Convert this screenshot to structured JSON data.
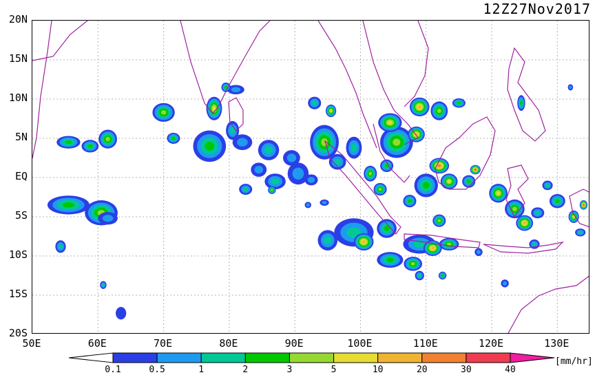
{
  "timestamp": "12Z27Nov2017",
  "map": {
    "projection": "equirectangular",
    "lon_range": [
      50,
      135
    ],
    "lat_range": [
      -20,
      20
    ],
    "grid_lines": "dotted gray every 10° lon / 5° lat",
    "lat_labels": [
      "20N",
      "15N",
      "10N",
      "5N",
      "EQ",
      "5S",
      "10S",
      "15S",
      "20S"
    ],
    "lon_labels": [
      "50E",
      "60E",
      "70E",
      "80E",
      "90E",
      "100E",
      "110E",
      "120E",
      "130E"
    ],
    "coastline_color": "#a020a0"
  },
  "legend": {
    "unit": "[mm/hr]",
    "thresholds": [
      "0.1",
      "0.5",
      "1",
      "2",
      "3",
      "5",
      "10",
      "20",
      "30",
      "40"
    ],
    "colors": [
      "#2b3fe6",
      "#1e9bf0",
      "#00c896",
      "#00c800",
      "#96d832",
      "#e6dc32",
      "#f0b432",
      "#f08232",
      "#f03c50",
      "#f01ea0"
    ]
  },
  "precip_cells": [
    {
      "lon": 55.5,
      "lat": -3.5,
      "rx": 3.2,
      "ry": 1.2,
      "level": 3
    },
    {
      "lon": 60.5,
      "lat": -4.5,
      "rx": 2.5,
      "ry": 1.6,
      "level": 4
    },
    {
      "lon": 61.5,
      "lat": -5.2,
      "rx": 1.5,
      "ry": 0.8,
      "level": 1
    },
    {
      "lon": 55.5,
      "lat": 4.5,
      "rx": 1.8,
      "ry": 0.8,
      "level": 3
    },
    {
      "lon": 58.8,
      "lat": 4.0,
      "rx": 1.3,
      "ry": 0.8,
      "level": 3
    },
    {
      "lon": 61.5,
      "lat": 4.9,
      "rx": 1.4,
      "ry": 1.2,
      "level": 4
    },
    {
      "lon": 54.3,
      "lat": -8.8,
      "rx": 0.8,
      "ry": 0.8,
      "level": 2
    },
    {
      "lon": 63.5,
      "lat": -17.3,
      "rx": 0.8,
      "ry": 0.8,
      "level": 0
    },
    {
      "lon": 60.8,
      "lat": -13.7,
      "rx": 0.5,
      "ry": 0.5,
      "level": 2
    },
    {
      "lon": 70.0,
      "lat": 8.3,
      "rx": 1.7,
      "ry": 1.2,
      "level": 4
    },
    {
      "lon": 71.5,
      "lat": 5.0,
      "rx": 1.0,
      "ry": 0.7,
      "level": 3
    },
    {
      "lon": 77.0,
      "lat": 4.0,
      "rx": 2.5,
      "ry": 2.0,
      "level": 3
    },
    {
      "lon": 77.7,
      "lat": 8.8,
      "rx": 1.2,
      "ry": 1.5,
      "level": 5
    },
    {
      "lon": 80.5,
      "lat": 6.0,
      "rx": 1.0,
      "ry": 1.2,
      "level": 2
    },
    {
      "lon": 82.0,
      "lat": 4.5,
      "rx": 1.5,
      "ry": 1.0,
      "level": 1
    },
    {
      "lon": 86.0,
      "lat": 3.5,
      "rx": 1.6,
      "ry": 1.3,
      "level": 2
    },
    {
      "lon": 89.5,
      "lat": 2.5,
      "rx": 1.3,
      "ry": 1.0,
      "level": 1
    },
    {
      "lon": 84.5,
      "lat": 1.0,
      "rx": 1.2,
      "ry": 0.9,
      "level": 1
    },
    {
      "lon": 87.0,
      "lat": -0.5,
      "rx": 1.6,
      "ry": 1.0,
      "level": 2
    },
    {
      "lon": 90.5,
      "lat": 0.5,
      "rx": 1.6,
      "ry": 1.4,
      "level": 1
    },
    {
      "lon": 92.5,
      "lat": -0.3,
      "rx": 1.0,
      "ry": 0.7,
      "level": 1
    },
    {
      "lon": 82.5,
      "lat": -1.5,
      "rx": 1.0,
      "ry": 0.7,
      "level": 2
    },
    {
      "lon": 86.5,
      "lat": -1.6,
      "rx": 0.6,
      "ry": 0.5,
      "level": 4
    },
    {
      "lon": 81.0,
      "lat": 11.2,
      "rx": 1.3,
      "ry": 0.6,
      "level": 1
    },
    {
      "lon": 79.5,
      "lat": 11.5,
      "rx": 0.7,
      "ry": 0.6,
      "level": 3
    },
    {
      "lon": 93.0,
      "lat": 9.5,
      "rx": 1.0,
      "ry": 0.8,
      "level": 2
    },
    {
      "lon": 95.5,
      "lat": 8.5,
      "rx": 0.8,
      "ry": 0.8,
      "level": 5
    },
    {
      "lon": 94.5,
      "lat": 4.5,
      "rx": 2.2,
      "ry": 2.2,
      "level": 4
    },
    {
      "lon": 96.5,
      "lat": 2.0,
      "rx": 1.3,
      "ry": 1.0,
      "level": 2
    },
    {
      "lon": 99.0,
      "lat": 3.8,
      "rx": 1.2,
      "ry": 1.4,
      "level": 2
    },
    {
      "lon": 94.5,
      "lat": -3.2,
      "rx": 0.7,
      "ry": 0.4,
      "level": 1
    },
    {
      "lon": 92.0,
      "lat": -3.5,
      "rx": 0.5,
      "ry": 0.4,
      "level": 1
    },
    {
      "lon": 99.0,
      "lat": -7.0,
      "rx": 3.0,
      "ry": 1.8,
      "level": 2
    },
    {
      "lon": 100.5,
      "lat": -8.2,
      "rx": 1.5,
      "ry": 1.1,
      "level": 6
    },
    {
      "lon": 95.0,
      "lat": -8.0,
      "rx": 1.5,
      "ry": 1.3,
      "level": 2
    },
    {
      "lon": 104.0,
      "lat": -6.5,
      "rx": 1.5,
      "ry": 1.2,
      "level": 3
    },
    {
      "lon": 104.5,
      "lat": -10.5,
      "rx": 2.0,
      "ry": 1.0,
      "level": 3
    },
    {
      "lon": 108.0,
      "lat": -11.0,
      "rx": 1.4,
      "ry": 0.9,
      "level": 4
    },
    {
      "lon": 109.0,
      "lat": -12.5,
      "rx": 0.7,
      "ry": 0.6,
      "level": 2
    },
    {
      "lon": 112.5,
      "lat": -12.5,
      "rx": 0.6,
      "ry": 0.5,
      "level": 3
    },
    {
      "lon": 109.0,
      "lat": -8.5,
      "rx": 2.5,
      "ry": 1.2,
      "level": 2
    },
    {
      "lon": 111.0,
      "lat": -9.0,
      "rx": 1.4,
      "ry": 1.0,
      "level": 6
    },
    {
      "lon": 113.5,
      "lat": -8.5,
      "rx": 1.5,
      "ry": 0.8,
      "level": 4
    },
    {
      "lon": 105.5,
      "lat": 4.5,
      "rx": 2.5,
      "ry": 2.0,
      "level": 4
    },
    {
      "lon": 104.5,
      "lat": 7.0,
      "rx": 1.8,
      "ry": 1.2,
      "level": 5
    },
    {
      "lon": 109.0,
      "lat": 9.0,
      "rx": 1.5,
      "ry": 1.2,
      "level": 6
    },
    {
      "lon": 112.0,
      "lat": 8.5,
      "rx": 1.3,
      "ry": 1.2,
      "level": 4
    },
    {
      "lon": 115.0,
      "lat": 9.5,
      "rx": 1.0,
      "ry": 0.6,
      "level": 3
    },
    {
      "lon": 108.5,
      "lat": 5.5,
      "rx": 1.3,
      "ry": 1.0,
      "level": 6
    },
    {
      "lon": 104.0,
      "lat": 1.5,
      "rx": 1.0,
      "ry": 0.8,
      "level": 3
    },
    {
      "lon": 101.5,
      "lat": 0.5,
      "rx": 1.0,
      "ry": 1.0,
      "level": 4
    },
    {
      "lon": 103.0,
      "lat": -1.5,
      "rx": 1.0,
      "ry": 0.8,
      "level": 4
    },
    {
      "lon": 110.0,
      "lat": -1.0,
      "rx": 1.8,
      "ry": 1.5,
      "level": 3
    },
    {
      "lon": 112.0,
      "lat": 1.5,
      "rx": 1.5,
      "ry": 1.0,
      "level": 7
    },
    {
      "lon": 113.5,
      "lat": -0.5,
      "rx": 1.3,
      "ry": 1.0,
      "level": 5
    },
    {
      "lon": 116.5,
      "lat": -0.5,
      "rx": 1.0,
      "ry": 0.8,
      "level": 3
    },
    {
      "lon": 117.5,
      "lat": 1.0,
      "rx": 0.8,
      "ry": 0.6,
      "level": 8
    },
    {
      "lon": 107.5,
      "lat": -3.0,
      "rx": 1.0,
      "ry": 0.8,
      "level": 3
    },
    {
      "lon": 112.0,
      "lat": -5.5,
      "rx": 1.0,
      "ry": 0.8,
      "level": 4
    },
    {
      "lon": 121.0,
      "lat": -2.0,
      "rx": 1.4,
      "ry": 1.2,
      "level": 5
    },
    {
      "lon": 123.5,
      "lat": -4.0,
      "rx": 1.5,
      "ry": 1.2,
      "level": 4
    },
    {
      "lon": 125.0,
      "lat": -5.8,
      "rx": 1.3,
      "ry": 1.0,
      "level": 6
    },
    {
      "lon": 127.0,
      "lat": -4.5,
      "rx": 1.0,
      "ry": 0.7,
      "level": 2
    },
    {
      "lon": 130.0,
      "lat": -3.0,
      "rx": 1.2,
      "ry": 0.9,
      "level": 3
    },
    {
      "lon": 132.5,
      "lat": -5.0,
      "rx": 0.8,
      "ry": 0.8,
      "level": 5
    },
    {
      "lon": 134.0,
      "lat": -3.5,
      "rx": 0.6,
      "ry": 0.6,
      "level": 8
    },
    {
      "lon": 133.5,
      "lat": -7.0,
      "rx": 0.8,
      "ry": 0.5,
      "level": 2
    },
    {
      "lon": 126.5,
      "lat": -8.5,
      "rx": 0.8,
      "ry": 0.6,
      "level": 2
    },
    {
      "lon": 128.5,
      "lat": -1.0,
      "rx": 0.8,
      "ry": 0.6,
      "level": 2
    },
    {
      "lon": 124.5,
      "lat": 9.5,
      "rx": 0.6,
      "ry": 1.0,
      "level": 3
    },
    {
      "lon": 132.0,
      "lat": 11.5,
      "rx": 0.4,
      "ry": 0.4,
      "level": 1
    },
    {
      "lon": 122.0,
      "lat": -13.5,
      "rx": 0.6,
      "ry": 0.5,
      "level": 1
    },
    {
      "lon": 118.0,
      "lat": -9.5,
      "rx": 0.6,
      "ry": 0.5,
      "level": 1
    }
  ]
}
